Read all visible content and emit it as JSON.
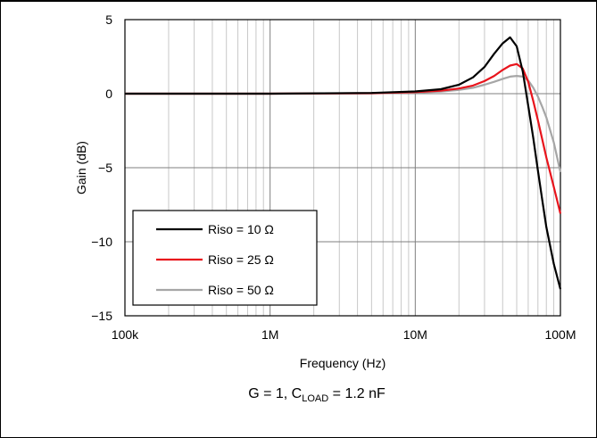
{
  "chart_data": {
    "type": "line",
    "title": "",
    "xlabel": "Frequency (Hz)",
    "ylabel": "Gain (dB)",
    "x_scale": "log",
    "xlim": [
      100000,
      100000000
    ],
    "ylim": [
      -15,
      5
    ],
    "x_ticks": [
      100000,
      1000000,
      10000000,
      100000000
    ],
    "x_tick_labels": [
      "100k",
      "1M",
      "10M",
      "100M"
    ],
    "y_ticks": [
      5,
      0,
      -5,
      -10,
      -15
    ],
    "y_tick_labels": [
      "5",
      "0",
      "−5",
      "−10",
      "−15"
    ],
    "grid": true,
    "legend_position": "bottom-left",
    "caption": {
      "prefix": "G = 1, C",
      "subscript": "LOAD",
      "suffix": " = 1.2 nF"
    },
    "series": [
      {
        "name": "Riso = 10 Ω",
        "color": "#000000",
        "x": [
          100000,
          1000000,
          5000000,
          10000000,
          15000000,
          20000000,
          25000000,
          30000000,
          35000000,
          40000000,
          45000000,
          50000000,
          55000000,
          60000000,
          65000000,
          70000000,
          75000000,
          80000000,
          90000000,
          100000000
        ],
        "y": [
          0,
          0,
          0.05,
          0.15,
          0.3,
          0.6,
          1.1,
          1.8,
          2.7,
          3.4,
          3.8,
          3.2,
          1.5,
          -0.8,
          -3.0,
          -5.2,
          -7.2,
          -9.0,
          -11.5,
          -13.2
        ]
      },
      {
        "name": "Riso = 25 Ω",
        "color": "#e8141c",
        "x": [
          100000,
          1000000,
          5000000,
          10000000,
          15000000,
          20000000,
          25000000,
          30000000,
          35000000,
          40000000,
          45000000,
          50000000,
          55000000,
          60000000,
          65000000,
          70000000,
          75000000,
          80000000,
          90000000,
          100000000
        ],
        "y": [
          0,
          0,
          0.03,
          0.1,
          0.2,
          0.35,
          0.55,
          0.85,
          1.2,
          1.6,
          1.9,
          2.0,
          1.7,
          0.8,
          -0.5,
          -1.8,
          -3.1,
          -4.3,
          -6.3,
          -8.1
        ]
      },
      {
        "name": "Riso = 50 Ω",
        "color": "#a6a6a6",
        "x": [
          100000,
          1000000,
          5000000,
          10000000,
          15000000,
          20000000,
          25000000,
          30000000,
          35000000,
          40000000,
          45000000,
          50000000,
          55000000,
          60000000,
          65000000,
          70000000,
          75000000,
          80000000,
          90000000,
          100000000
        ],
        "y": [
          0,
          0,
          0.02,
          0.07,
          0.14,
          0.25,
          0.4,
          0.6,
          0.8,
          1.0,
          1.15,
          1.2,
          1.15,
          0.9,
          0.4,
          -0.2,
          -0.9,
          -1.6,
          -3.3,
          -5.3
        ]
      }
    ]
  }
}
